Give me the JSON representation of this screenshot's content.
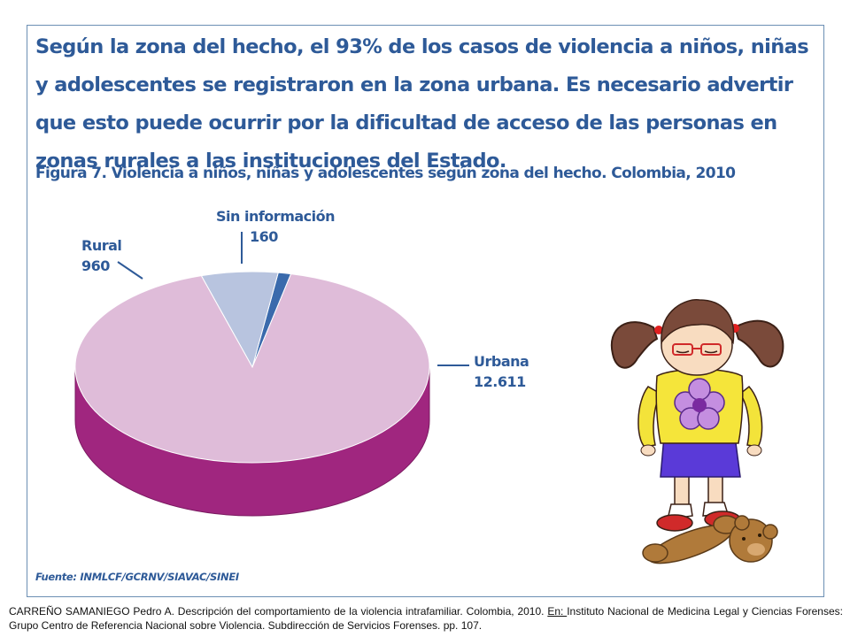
{
  "intro_text": "Según la zona del hecho, el 93% de los casos de violencia a niños, niñas y adolescentes se registraron en la zona urbana. Es necesario advertir que esto puede ocurrir por la dificultad de acceso de las personas en zonas rurales a las instituciones del Estado.",
  "chart_data": {
    "type": "pie",
    "title": "Figura 7. Violencia a niños, niñas y adolescentes según zona del hecho. Colombia, 2010",
    "categories": [
      "Urbana",
      "Rural",
      "Sin información"
    ],
    "values": [
      12611,
      960,
      160
    ],
    "value_labels": [
      "12.611",
      "960",
      "160"
    ],
    "colors": {
      "Urbana": "#dfbcd9",
      "Urbana_side": "#a0267f",
      "Rural": "#b8c4df",
      "Sin información": "#3a6aac"
    },
    "style": "3d-tilted",
    "legend": "none"
  },
  "source_text": "Fuente: INMLCF/GCRNV/SIAVAC/SINEI",
  "citation": {
    "part1": "CARREÑO SAMANIEGO Pedro A. Descripción del comportamiento de la violencia intrafamiliar. Colombia,  2010. ",
    "en": "En: ",
    "part2": "Instituto Nacional de Medicina Legal y Ciencias Forenses: Grupo Centro de Referencia Nacional sobre Violencia. Subdirección de Servicios Forenses. pp. 107."
  },
  "illustration": "sad-girl-with-teddy-bear-clipart"
}
